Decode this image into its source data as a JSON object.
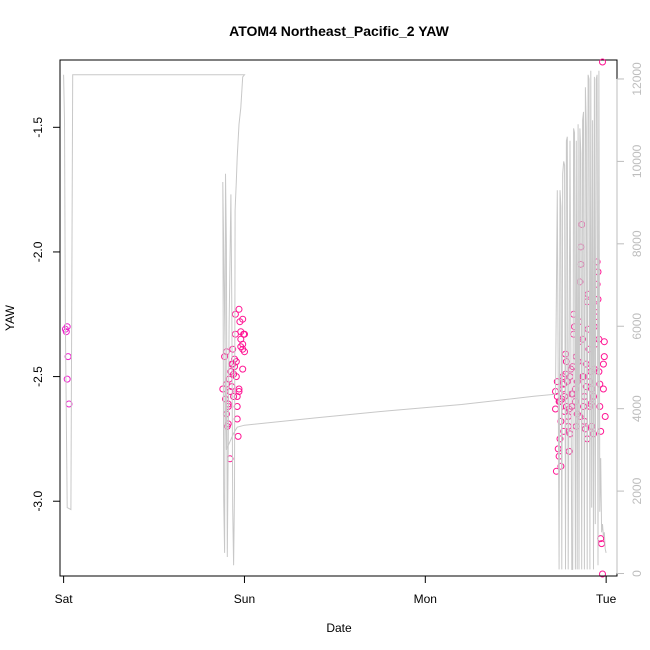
{
  "chart_data": {
    "type": "scatter",
    "title": "ATOM4 Northeast_Pacific_2 YAW",
    "xlabel": "Date",
    "ylabel": "YAW",
    "x_tick_labels": [
      "Sat",
      "Sun",
      "Mon",
      "Tue"
    ],
    "x_tick_values": [
      0,
      1,
      2,
      3
    ],
    "xlim": [
      -0.02,
      3.06
    ],
    "y_ticks": [
      -1.5,
      -2.0,
      -2.5,
      -3.0
    ],
    "ylim": [
      -3.3,
      -1.23
    ],
    "y2_ticks": [
      0,
      2000,
      4000,
      6000,
      8000,
      10000,
      12000
    ],
    "y2lim": [
      -60,
      12460
    ],
    "grid": false,
    "colors": {
      "points": "#ff1493",
      "points_early": "#ee22cc",
      "line": "#c8c8c8",
      "right_axis": "#bdbdbd"
    },
    "series": [
      {
        "kind": "points",
        "x": [
          0.01,
          0.015,
          0.02,
          0.025,
          0.02,
          0.03,
          0.88,
          0.89,
          0.9,
          0.9,
          0.91,
          0.91,
          0.92,
          0.92,
          0.93,
          0.93,
          0.935,
          0.94,
          0.94,
          0.945,
          0.95,
          0.95,
          0.955,
          0.96,
          0.96,
          0.965,
          0.97,
          0.97,
          0.975,
          0.98,
          0.98,
          0.99,
          0.99,
          1.0,
          0.99,
          1.0,
          0.895,
          0.9,
          0.905,
          0.91,
          0.915,
          0.925,
          0.935,
          0.945,
          0.955,
          0.96,
          0.97,
          0.98,
          0.99,
          0.995,
          2.72,
          2.72,
          2.73,
          2.73,
          2.74,
          2.74,
          2.745,
          2.75,
          2.75,
          2.755,
          2.76,
          2.76,
          2.765,
          2.77,
          2.77,
          2.775,
          2.78,
          2.78,
          2.785,
          2.79,
          2.79,
          2.795,
          2.8,
          2.8,
          2.805,
          2.81,
          2.81,
          2.815,
          2.82,
          2.82,
          2.825,
          2.83,
          2.83,
          2.835,
          2.84,
          2.84,
          2.845,
          2.85,
          2.85,
          2.855,
          2.86,
          2.86,
          2.865,
          2.87,
          2.87,
          2.875,
          2.88,
          2.88,
          2.885,
          2.89,
          2.89,
          2.895,
          2.9,
          2.9,
          2.905,
          2.91,
          2.91,
          2.915,
          2.92,
          2.92,
          2.925,
          2.93,
          2.93,
          2.935,
          2.94,
          2.94,
          2.945,
          2.95,
          2.95,
          2.955,
          2.96,
          2.96,
          2.965,
          2.97,
          2.97,
          2.975,
          2.98,
          2.98,
          2.985,
          2.99,
          2.99,
          2.995,
          2.725,
          2.735,
          2.745,
          2.765,
          2.775,
          2.795,
          2.815,
          2.835,
          2.855,
          2.875,
          2.895,
          2.915,
          2.935,
          2.955,
          2.965,
          2.985
        ],
        "y": [
          -2.31,
          -2.32,
          -2.3,
          -2.42,
          -2.51,
          -2.61,
          -2.55,
          -2.42,
          -2.53,
          -2.4,
          -2.62,
          -2.69,
          -2.83,
          -2.56,
          -2.45,
          -2.54,
          -2.39,
          -2.49,
          -2.58,
          -2.46,
          -2.33,
          -2.25,
          -2.44,
          -2.58,
          -2.62,
          -2.74,
          -2.55,
          -2.23,
          -2.28,
          -2.35,
          -2.32,
          -2.37,
          -2.39,
          -2.4,
          -2.47,
          -2.33,
          -2.59,
          -2.65,
          -2.7,
          -2.61,
          -2.51,
          -2.48,
          -2.45,
          -2.43,
          -2.5,
          -2.67,
          -2.56,
          -2.38,
          -2.27,
          -2.33,
          -2.56,
          -2.63,
          -2.52,
          -2.58,
          -2.6,
          -2.82,
          -2.75,
          -2.86,
          -2.68,
          -2.59,
          -2.5,
          -2.55,
          -2.72,
          -2.64,
          -2.58,
          -2.41,
          -2.44,
          -2.62,
          -2.52,
          -2.7,
          -2.66,
          -2.8,
          -2.73,
          -2.5,
          -2.47,
          -2.62,
          -2.57,
          -2.46,
          -2.33,
          -2.25,
          -2.3,
          -2.6,
          -2.55,
          -2.7,
          -2.65,
          -2.52,
          -2.44,
          -2.36,
          -2.28,
          -2.12,
          -2.05,
          -1.98,
          -1.89,
          -2.35,
          -2.5,
          -2.62,
          -2.58,
          -2.68,
          -2.71,
          -2.54,
          -2.45,
          -2.2,
          -2.17,
          -2.31,
          -2.39,
          -2.62,
          -2.52,
          -2.48,
          -2.55,
          -2.7,
          -2.6,
          -2.73,
          -2.58,
          -2.47,
          -2.37,
          -2.26,
          -2.22,
          -2.13,
          -2.04,
          -2.19,
          -2.35,
          -2.48,
          -2.62,
          -2.72,
          -3.15,
          -3.17,
          -3.32,
          -1.19,
          -2.55,
          -2.42,
          -2.36,
          -2.66,
          -2.88,
          -2.79,
          -2.6,
          -2.53,
          -2.49,
          -2.63,
          -2.57,
          -2.42,
          -2.66,
          -2.5,
          -2.75,
          -2.61,
          -2.3,
          -2.08,
          -2.53,
          -2.45
        ]
      },
      {
        "kind": "line",
        "axis": "right",
        "x": [
          0.0,
          0.005,
          0.01,
          0.02,
          0.04,
          0.05,
          0.1,
          0.2,
          0.4,
          0.6,
          0.8,
          0.9,
          0.95,
          1.0,
          1.0,
          0.99,
          0.98,
          0.975,
          0.97,
          0.96,
          0.955,
          0.95,
          0.948,
          0.945,
          0.94,
          0.935,
          0.93,
          0.925,
          0.915,
          0.91,
          0.905,
          0.9,
          0.895,
          0.89,
          0.885,
          0.88,
          0.9,
          0.92,
          0.94,
          0.96,
          1.0,
          1.4,
          1.8,
          2.2,
          2.6,
          2.72,
          2.73,
          2.74,
          2.745,
          2.75,
          2.755,
          2.76,
          2.765,
          2.77,
          2.775,
          2.78,
          2.785,
          2.79,
          2.8,
          2.81,
          2.815,
          2.82,
          2.825,
          2.83,
          2.835,
          2.84,
          2.845,
          2.85,
          2.855,
          2.86,
          2.865,
          2.87,
          2.875,
          2.88,
          2.885,
          2.89,
          2.895,
          2.9,
          2.905,
          2.91,
          2.915,
          2.92,
          2.925,
          2.93,
          2.935,
          2.94,
          2.945,
          2.95,
          2.955,
          2.96,
          2.965,
          2.97,
          2.975,
          2.98,
          2.985,
          2.99,
          2.995,
          3.0
        ],
        "y": [
          12100,
          11000,
          6000,
          1600,
          1550,
          12100,
          12100,
          12100,
          12100,
          12100,
          12100,
          12100,
          12100,
          12100,
          12100,
          12050,
          11300,
          11100,
          10900,
          10100,
          9500,
          9000,
          8800,
          2000,
          200,
          1600,
          6500,
          9200,
          6000,
          3000,
          400,
          8000,
          9700,
          500,
          1800,
          9500,
          3000,
          3200,
          3400,
          3550,
          3600,
          3780,
          3950,
          4100,
          4300,
          4350,
          9300,
          100,
          9300,
          8900,
          100,
          9700,
          10000,
          9900,
          100,
          10500,
          10600,
          100,
          10500,
          100,
          100,
          10800,
          10700,
          100,
          10500,
          100,
          10900,
          100,
          10800,
          10200,
          100,
          11000,
          11200,
          100,
          11800,
          10800,
          100,
          12100,
          12000,
          100,
          12200,
          1600,
          11000,
          100,
          12050,
          1200,
          12000,
          12100,
          200,
          12200,
          1500,
          2800,
          1000,
          1200,
          900,
          1000,
          600,
          500
        ]
      }
    ]
  }
}
